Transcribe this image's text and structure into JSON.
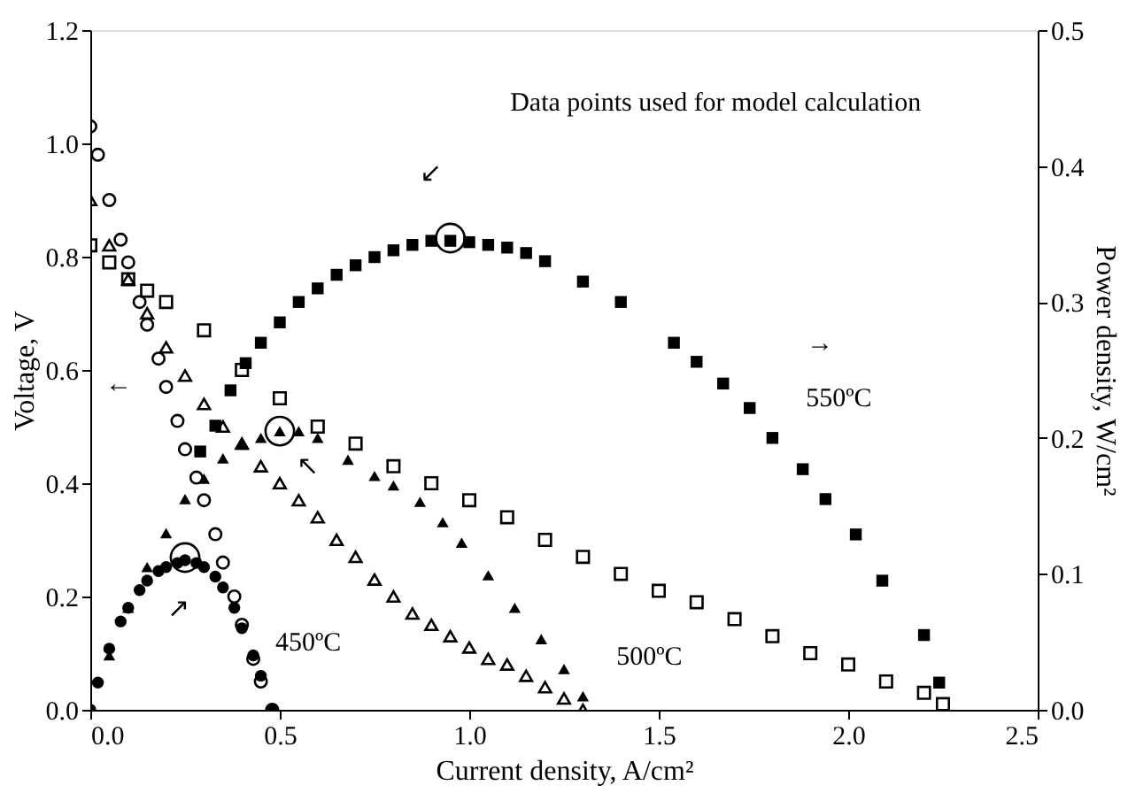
{
  "chart_data": {
    "type": "scatter",
    "xlabel": "Current density, A/cm²",
    "ylabel": "Voltage, V",
    "y2label": "Power density, W/cm²",
    "xlim": [
      0,
      2.5
    ],
    "xticks": [
      {
        "value": 0,
        "label": "0.0"
      },
      {
        "value": 0.5,
        "label": "0.5"
      },
      {
        "value": 1,
        "label": "1.0"
      },
      {
        "value": 1.5,
        "label": "1.5"
      },
      {
        "value": 2,
        "label": "2.0"
      },
      {
        "value": 2.5,
        "label": "2.5"
      }
    ],
    "ylim": [
      0,
      1.2
    ],
    "yticks": [
      {
        "value": 0,
        "label": "0.0"
      },
      {
        "value": 0.2,
        "label": "0.2"
      },
      {
        "value": 0.4,
        "label": "0.4"
      },
      {
        "value": 0.6,
        "label": "0.6"
      },
      {
        "value": 0.8,
        "label": "0.8"
      },
      {
        "value": 1,
        "label": "1.0"
      },
      {
        "value": 1.2,
        "label": "1.2"
      }
    ],
    "y2lim": [
      0,
      0.5
    ],
    "y2ticks": [
      {
        "value": 0,
        "label": "0.0"
      },
      {
        "value": 0.1,
        "label": "0.1"
      },
      {
        "value": 0.2,
        "label": "0.2"
      },
      {
        "value": 0.3,
        "label": "0.3"
      },
      {
        "value": 0.4,
        "label": "0.4"
      },
      {
        "value": 0.5,
        "label": "0.5"
      }
    ],
    "grid": false,
    "series": [
      {
        "marker": "circle",
        "color": "#000000",
        "x": [
          0,
          0.02,
          0.05,
          0.08,
          0.1,
          0.13,
          0.15,
          0.18,
          0.2,
          0.23,
          0.25,
          0.28,
          0.3,
          0.33,
          0.35,
          0.38,
          0.4,
          0.43,
          0.45,
          0.48
        ],
        "values": [
          1.03,
          0.98,
          0.9,
          0.83,
          0.79,
          0.72,
          0.68,
          0.62,
          0.57,
          0.51,
          0.46,
          0.41,
          0.37,
          0.31,
          0.26,
          0.2,
          0.15,
          0.09,
          0.05,
          0.0
        ]
      },
      {
        "marker": "triangle",
        "color": "#000000",
        "x": [
          0,
          0.05,
          0.1,
          0.15,
          0.2,
          0.25,
          0.3,
          0.35,
          0.4,
          0.45,
          0.5,
          0.55,
          0.6,
          0.65,
          0.7,
          0.75,
          0.8,
          0.85,
          0.9,
          0.95,
          1.0,
          1.05,
          1.1,
          1.15,
          1.2,
          1.25,
          1.3
        ],
        "values": [
          0.9,
          0.82,
          0.76,
          0.7,
          0.64,
          0.59,
          0.54,
          0.5,
          0.47,
          0.43,
          0.4,
          0.37,
          0.34,
          0.3,
          0.27,
          0.23,
          0.2,
          0.17,
          0.15,
          0.13,
          0.11,
          0.09,
          0.08,
          0.06,
          0.04,
          0.02,
          0.0
        ]
      },
      {
        "marker": "square",
        "color": "#000000",
        "x": [
          0,
          0.05,
          0.1,
          0.15,
          0.2,
          0.3,
          0.4,
          0.5,
          0.6,
          0.7,
          0.8,
          0.9,
          1.0,
          1.1,
          1.2,
          1.3,
          1.4,
          1.5,
          1.6,
          1.7,
          1.8,
          1.9,
          2.0,
          2.1,
          2.2,
          2.25
        ],
        "values": [
          0.82,
          0.79,
          0.76,
          0.74,
          0.72,
          0.67,
          0.6,
          0.55,
          0.5,
          0.47,
          0.43,
          0.4,
          0.37,
          0.34,
          0.3,
          0.27,
          0.24,
          0.21,
          0.19,
          0.16,
          0.13,
          0.1,
          0.08,
          0.05,
          0.03,
          0.01
        ]
      },
      {
        "axis": "y2",
        "marker": "circle",
        "color": "#000000",
        "x": [
          0,
          0.02,
          0.05,
          0.08,
          0.1,
          0.13,
          0.15,
          0.18,
          0.2,
          0.23,
          0.25,
          0.28,
          0.3,
          0.33,
          0.35,
          0.38,
          0.4,
          0.43,
          0.45,
          0.48
        ],
        "values": [
          0.0,
          0.02,
          0.045,
          0.065,
          0.075,
          0.088,
          0.095,
          0.102,
          0.105,
          0.108,
          0.11,
          0.108,
          0.105,
          0.098,
          0.09,
          0.075,
          0.06,
          0.04,
          0.025,
          0.0
        ]
      },
      {
        "axis": "y2",
        "marker": "triangle",
        "color": "#000000",
        "x": [
          0.05,
          0.1,
          0.15,
          0.2,
          0.25,
          0.3,
          0.35,
          0.4,
          0.45,
          0.5,
          0.55,
          0.6,
          0.68,
          0.75,
          0.8,
          0.87,
          0.93,
          0.98,
          1.05,
          1.12,
          1.19,
          1.25,
          1.3
        ],
        "values": [
          0.04,
          0.075,
          0.105,
          0.13,
          0.155,
          0.17,
          0.185,
          0.195,
          0.2,
          0.205,
          0.205,
          0.2,
          0.184,
          0.172,
          0.165,
          0.153,
          0.138,
          0.123,
          0.099,
          0.075,
          0.052,
          0.03,
          0.01
        ]
      },
      {
        "axis": "y2",
        "marker": "square",
        "color": "#000000",
        "x": [
          0.29,
          0.33,
          0.37,
          0.41,
          0.45,
          0.5,
          0.55,
          0.6,
          0.65,
          0.7,
          0.75,
          0.8,
          0.85,
          0.9,
          0.95,
          1.0,
          1.05,
          1.1,
          1.15,
          1.2,
          1.3,
          1.4,
          1.54,
          1.6,
          1.67,
          1.74,
          1.8,
          1.88,
          1.94,
          2.02,
          2.09,
          2.2,
          2.24
        ],
        "values": [
          0.19,
          0.209,
          0.235,
          0.255,
          0.27,
          0.285,
          0.3,
          0.31,
          0.32,
          0.327,
          0.333,
          0.338,
          0.342,
          0.345,
          0.345,
          0.344,
          0.342,
          0.34,
          0.336,
          0.33,
          0.315,
          0.3,
          0.27,
          0.256,
          0.24,
          0.222,
          0.2,
          0.177,
          0.155,
          0.129,
          0.095,
          0.055,
          0.02
        ]
      },
      {
        "type": "bubble",
        "axis": "y2",
        "marker": "circle",
        "color": "#000000",
        "x": [
          0.25,
          0.5,
          0.95
        ],
        "values": [
          0.112,
          0.205,
          0.347
        ],
        "sizes": [
          1,
          1,
          1
        ]
      }
    ],
    "annotations": [
      "Data points used for model calculation",
      "↙",
      "↖",
      "↗",
      "←",
      "→",
      "450ºC",
      "500ºC",
      "550ºC"
    ]
  }
}
